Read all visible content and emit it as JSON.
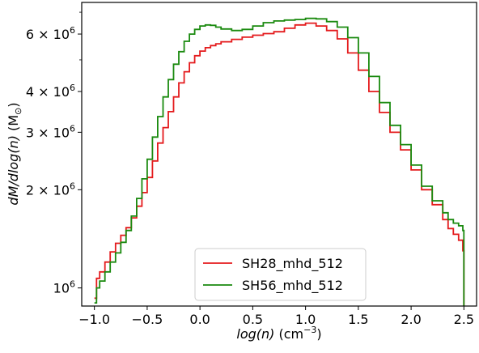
{
  "chart_data": {
    "type": "line",
    "xlabel_main": "log(n)",
    "xlabel_unit": "(cm",
    "xlabel_exp": "−3",
    "xlabel_close": ")",
    "ylabel_main": "dM/dlog(n)",
    "ylabel_unit": "(M",
    "ylabel_sym": "⊙",
    "ylabel_close": ")",
    "y_scale": "log",
    "xlim": [
      -1.12,
      2.62
    ],
    "ylim": [
      880000,
      7500000
    ],
    "x_ticks": [
      {
        "value": -1.0,
        "label": "−1.0"
      },
      {
        "value": -0.5,
        "label": "−0.5"
      },
      {
        "value": 0.0,
        "label": "0.0"
      },
      {
        "value": 0.5,
        "label": "0.5"
      },
      {
        "value": 1.0,
        "label": "1.0"
      },
      {
        "value": 1.5,
        "label": "1.5"
      },
      {
        "value": 2.0,
        "label": "2.0"
      },
      {
        "value": 2.5,
        "label": "2.5"
      }
    ],
    "y_ticks": [
      {
        "value": 1000000,
        "mant": "10",
        "exp": "6"
      },
      {
        "value": 2000000,
        "mant": "2 × 10",
        "exp": "6"
      },
      {
        "value": 3000000,
        "mant": "3 × 10",
        "exp": "6"
      },
      {
        "value": 4000000,
        "mant": "4 × 10",
        "exp": "6"
      },
      {
        "value": 6000000,
        "mant": "6 × 10",
        "exp": "6"
      }
    ],
    "y_minor_ticks": [
      5000000,
      7000000
    ],
    "legend_position": "lower center",
    "series": [
      {
        "name": "SH28_mhd_512",
        "color": "#e41a1c",
        "x": [
          -1.0,
          -0.98,
          -0.95,
          -0.9,
          -0.85,
          -0.8,
          -0.75,
          -0.7,
          -0.65,
          -0.6,
          -0.55,
          -0.5,
          -0.45,
          -0.4,
          -0.35,
          -0.3,
          -0.25,
          -0.2,
          -0.15,
          -0.1,
          -0.05,
          0.0,
          0.05,
          0.1,
          0.15,
          0.2,
          0.3,
          0.4,
          0.5,
          0.6,
          0.7,
          0.8,
          0.9,
          1.0,
          1.1,
          1.2,
          1.3,
          1.4,
          1.5,
          1.6,
          1.7,
          1.8,
          1.9,
          2.0,
          2.1,
          2.2,
          2.3,
          2.35,
          2.4,
          2.45,
          2.49,
          2.5
        ],
        "values": [
          930000,
          1070000,
          1120000,
          1200000,
          1290000,
          1370000,
          1450000,
          1530000,
          1640000,
          1780000,
          1960000,
          2180000,
          2450000,
          2780000,
          3100000,
          3470000,
          3850000,
          4250000,
          4600000,
          4900000,
          5150000,
          5320000,
          5450000,
          5530000,
          5600000,
          5680000,
          5780000,
          5870000,
          5950000,
          6020000,
          6100000,
          6250000,
          6400000,
          6480000,
          6350000,
          6150000,
          5800000,
          5250000,
          4650000,
          4000000,
          3450000,
          3000000,
          2650000,
          2300000,
          2000000,
          1800000,
          1620000,
          1520000,
          1460000,
          1400000,
          1300000,
          880000
        ]
      },
      {
        "name": "SH56_mhd_512",
        "color": "#1a8a0f",
        "x": [
          -1.0,
          -0.98,
          -0.95,
          -0.9,
          -0.85,
          -0.8,
          -0.75,
          -0.7,
          -0.65,
          -0.6,
          -0.55,
          -0.5,
          -0.45,
          -0.4,
          -0.35,
          -0.3,
          -0.25,
          -0.2,
          -0.15,
          -0.1,
          -0.05,
          0.0,
          0.05,
          0.1,
          0.15,
          0.2,
          0.3,
          0.4,
          0.5,
          0.6,
          0.7,
          0.8,
          0.9,
          1.0,
          1.1,
          1.2,
          1.3,
          1.4,
          1.5,
          1.6,
          1.7,
          1.8,
          1.9,
          2.0,
          2.1,
          2.2,
          2.3,
          2.35,
          2.4,
          2.45,
          2.49,
          2.5
        ],
        "values": [
          900000,
          1000000,
          1050000,
          1120000,
          1200000,
          1280000,
          1380000,
          1500000,
          1660000,
          1880000,
          2160000,
          2480000,
          2900000,
          3350000,
          3850000,
          4350000,
          4850000,
          5300000,
          5700000,
          6000000,
          6200000,
          6350000,
          6400000,
          6380000,
          6300000,
          6220000,
          6150000,
          6200000,
          6350000,
          6500000,
          6580000,
          6620000,
          6650000,
          6700000,
          6680000,
          6550000,
          6300000,
          5850000,
          5250000,
          4450000,
          3700000,
          3150000,
          2750000,
          2380000,
          2050000,
          1850000,
          1700000,
          1620000,
          1580000,
          1550000,
          1500000,
          880000
        ]
      }
    ]
  }
}
